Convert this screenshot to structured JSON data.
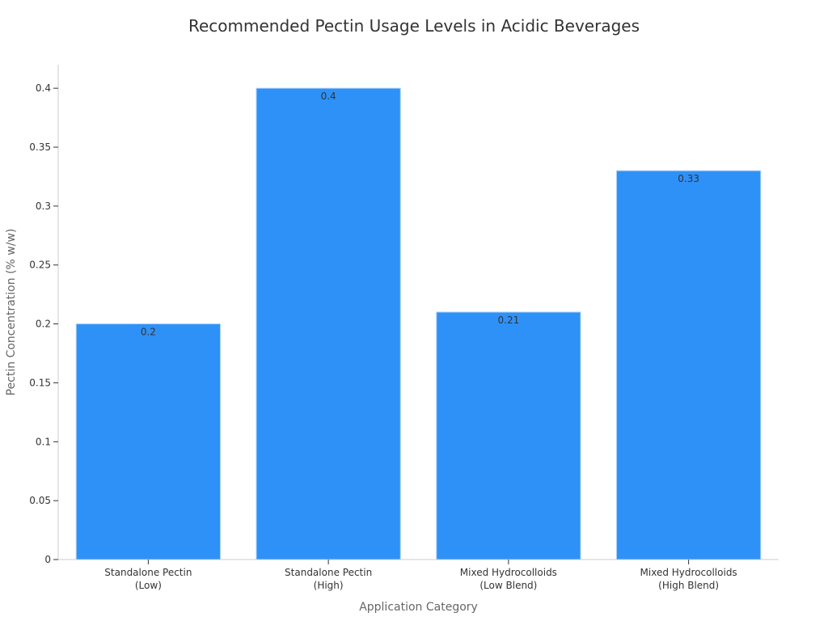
{
  "chart_data": {
    "type": "bar",
    "title": "Recommended Pectin Usage Levels in Acidic Beverages",
    "xlabel": "Application Category",
    "ylabel": "Pectin Concentration (% w/w)",
    "categories": [
      [
        "Standalone Pectin",
        "(Low)"
      ],
      [
        "Standalone Pectin",
        "(High)"
      ],
      [
        "Mixed Hydrocolloids",
        "(Low Blend)"
      ],
      [
        "Mixed Hydrocolloids",
        "(High Blend)"
      ]
    ],
    "values": [
      0.2,
      0.4,
      0.21,
      0.33
    ],
    "data_labels": [
      "0.2",
      "0.4",
      "0.21",
      "0.33"
    ],
    "ylim": [
      0,
      0.42
    ],
    "yticks": [
      0,
      0.05,
      0.1,
      0.15,
      0.2,
      0.25,
      0.3,
      0.35,
      0.4
    ],
    "ytick_labels": [
      "0",
      "0.05",
      "0.1",
      "0.15",
      "0.2",
      "0.25",
      "0.3",
      "0.35",
      "0.4"
    ],
    "grid": false,
    "legend": "none",
    "bar_color": "#2e91f8",
    "bar_edge_color": "#a8cff7"
  }
}
